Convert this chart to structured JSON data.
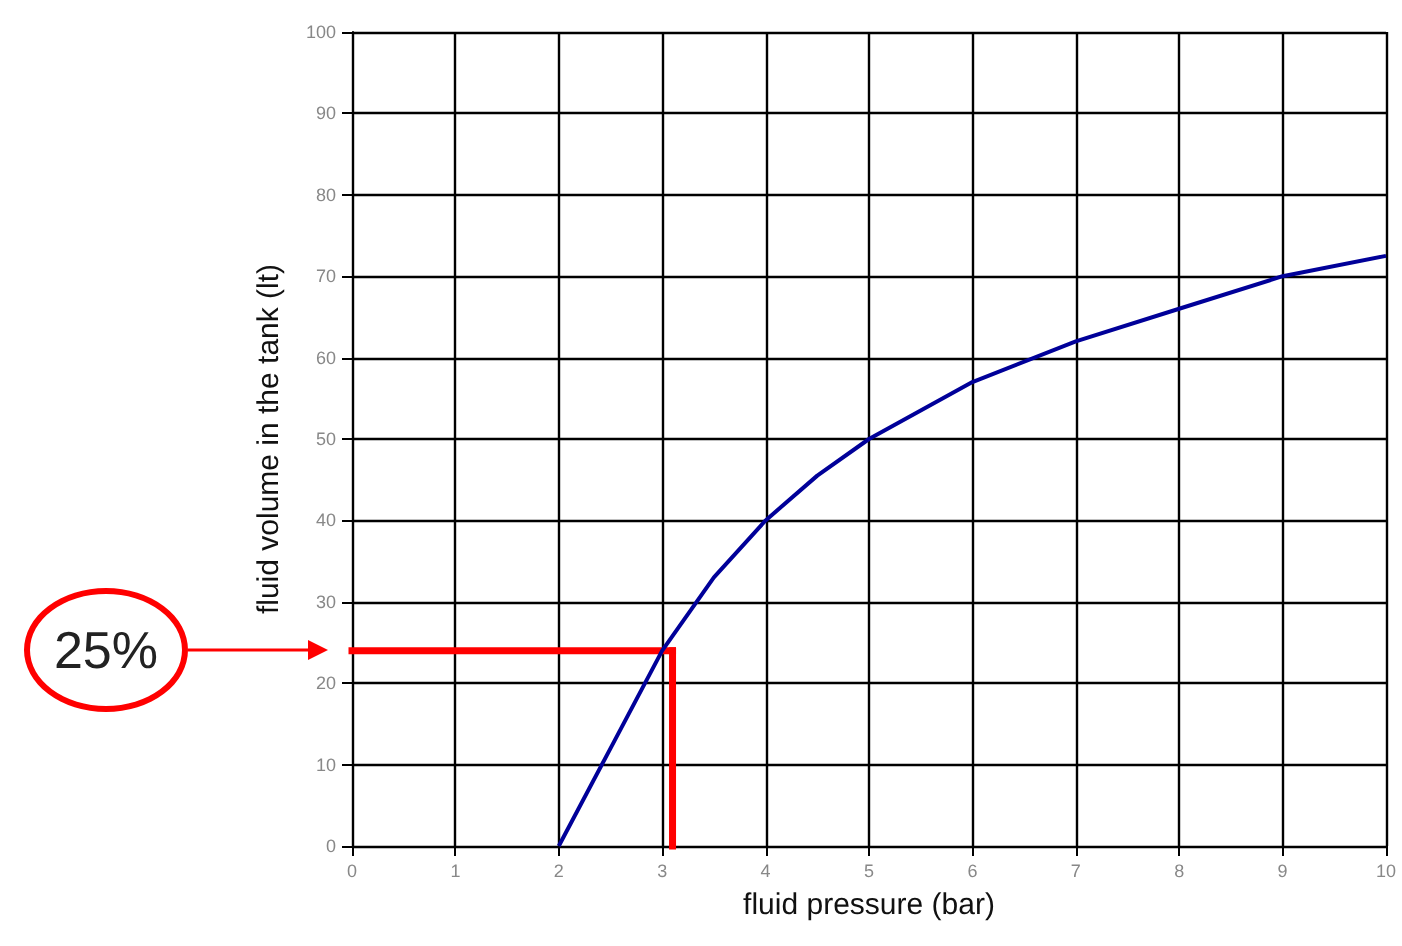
{
  "chart_data": {
    "type": "line",
    "xlabel": "fluid pressure (bar)",
    "ylabel": "fluid volume in the tank (lt)",
    "x": [
      2,
      2.5,
      3,
      3.5,
      4,
      4.5,
      5,
      6,
      7,
      8,
      9,
      10
    ],
    "series": [
      {
        "color": "#000099",
        "values": [
          0,
          12,
          24,
          33,
          40,
          45.5,
          50,
          57,
          62,
          66,
          70,
          72.5
        ]
      }
    ],
    "ref_lines": [
      {
        "axis": "y",
        "value": 24,
        "color": "#ff0000"
      },
      {
        "axis": "x",
        "value": 3.1,
        "color": "#ff0000"
      }
    ],
    "xlim": [
      0,
      10
    ],
    "xticks": [
      0,
      1,
      2,
      3,
      4,
      5,
      6,
      7,
      8,
      9,
      10
    ],
    "ylim": [
      0,
      100
    ],
    "yticks": [
      0,
      10,
      20,
      30,
      40,
      50,
      60,
      70,
      80,
      90,
      100
    ],
    "grid": true,
    "marker": "none",
    "line_style": "solid",
    "annotations": [
      "25%"
    ]
  }
}
